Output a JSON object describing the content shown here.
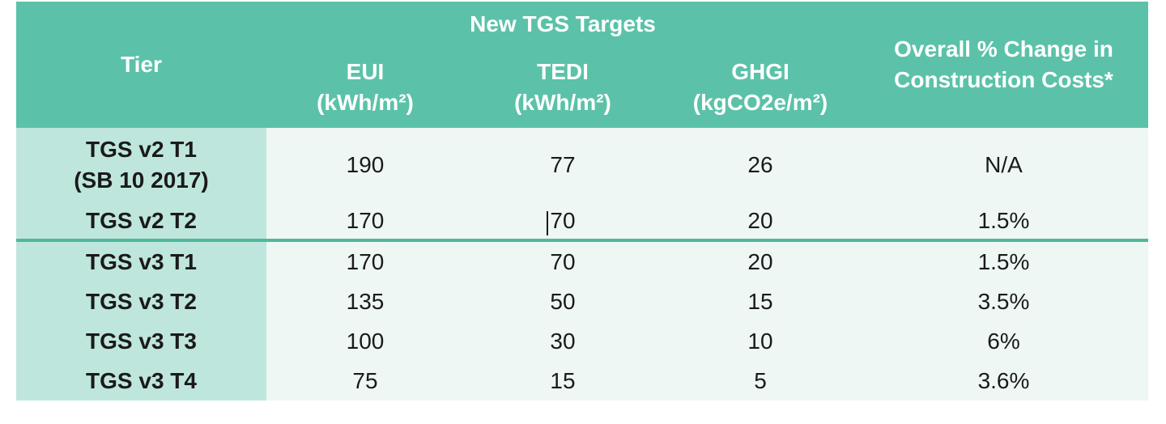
{
  "table": {
    "header": {
      "tier": "Tier",
      "group": "New TGS Targets",
      "change": "Overall % Change in Construction Costs*",
      "eui": "EUI",
      "eui_unit": "(kWh/m²)",
      "tedi": "TEDI",
      "tedi_unit": "(kWh/m²)",
      "ghgi": "GHGI",
      "ghgi_unit": "(kgCO2e/m²)"
    },
    "rows": [
      {
        "tier": "TGS v2 T1",
        "tier_sub": "(SB 10 2017)",
        "eui": "190",
        "tedi": "77",
        "ghgi": "26",
        "change": "N/A"
      },
      {
        "tier": "TGS v2 T2",
        "eui": "170",
        "tedi": "70",
        "ghgi": "20",
        "change": "1.5%"
      },
      {
        "tier": "TGS v3 T1",
        "eui": "170",
        "tedi": "70",
        "ghgi": "20",
        "change": "1.5%"
      },
      {
        "tier": "TGS v3 T2",
        "eui": "135",
        "tedi": "50",
        "ghgi": "15",
        "change": "3.5%"
      },
      {
        "tier": "TGS v3 T3",
        "eui": "100",
        "tedi": "30",
        "ghgi": "10",
        "change": "6%"
      },
      {
        "tier": "TGS v3 T4",
        "eui": "75",
        "tedi": "15",
        "ghgi": "5",
        "change": "3.6%"
      }
    ]
  },
  "colors": {
    "header_bg": "#5bc2a9",
    "tier_bg": "#bfe6dc",
    "cell_bg": "#eef7f4",
    "separator": "#4fb89d"
  }
}
